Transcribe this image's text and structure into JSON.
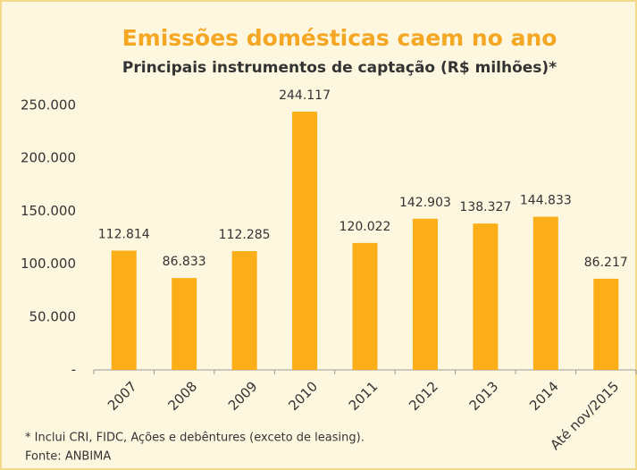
{
  "chart_data": {
    "type": "bar",
    "title": "Emissões domésticas caem no ano",
    "subtitle": "Principais instrumentos de captação (R$ milhões)*",
    "categories": [
      "2007",
      "2008",
      "2009",
      "2010",
      "2011",
      "2012",
      "2013",
      "2014",
      "Até nov/2015"
    ],
    "values": [
      112814,
      86833,
      112285,
      244117,
      120022,
      142903,
      138327,
      144833,
      86217
    ],
    "value_labels": [
      "112.814",
      "86.833",
      "112.285",
      "244.117",
      "120.022",
      "142.903",
      "138.327",
      "144.833",
      "86.217"
    ],
    "color": "#fbae17",
    "ylim": [
      0,
      250000
    ],
    "yticks": [
      {
        "value": 0,
        "label": "-"
      },
      {
        "value": 50000,
        "label": "50.000"
      },
      {
        "value": 100000,
        "label": "100.000"
      },
      {
        "value": 150000,
        "label": "150.000"
      },
      {
        "value": 200000,
        "label": "200.000"
      },
      {
        "value": 250000,
        "label": "250.000"
      }
    ],
    "grid": false,
    "note": "* Inclui CRI, FIDC, Ações e debêntures (exceto de leasing).",
    "source": "Fonte: ANBIMA"
  }
}
